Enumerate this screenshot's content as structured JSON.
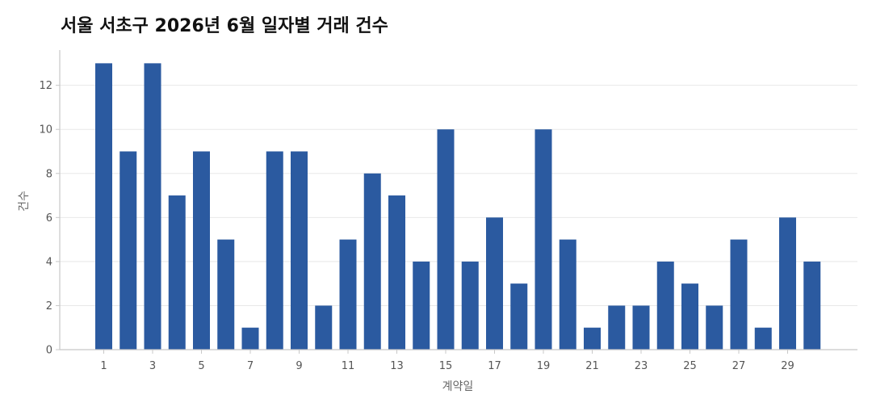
{
  "chart_data": {
    "type": "bar",
    "title": "서울 서초구 2026년 6월 일자별 거래 건수",
    "xlabel": "계약일",
    "ylabel": "건수",
    "categories": [
      1,
      2,
      3,
      4,
      5,
      6,
      7,
      8,
      9,
      10,
      11,
      12,
      13,
      14,
      15,
      16,
      17,
      18,
      19,
      20,
      21,
      22,
      23,
      24,
      25,
      26,
      27,
      28,
      29,
      30
    ],
    "values": [
      13,
      9,
      13,
      7,
      9,
      5,
      1,
      9,
      9,
      2,
      5,
      8,
      7,
      4,
      10,
      4,
      6,
      3,
      10,
      5,
      1,
      2,
      2,
      4,
      3,
      2,
      5,
      1,
      6,
      4
    ],
    "x_tick_labels": [
      "1",
      "3",
      "5",
      "7",
      "9",
      "11",
      "13",
      "15",
      "17",
      "19",
      "21",
      "23",
      "25",
      "27",
      "29"
    ],
    "y_ticks": [
      0,
      2,
      4,
      6,
      8,
      10,
      12
    ],
    "ylim": [
      0,
      13.6
    ],
    "grid": true,
    "bar_color": "#2b5aa0"
  }
}
